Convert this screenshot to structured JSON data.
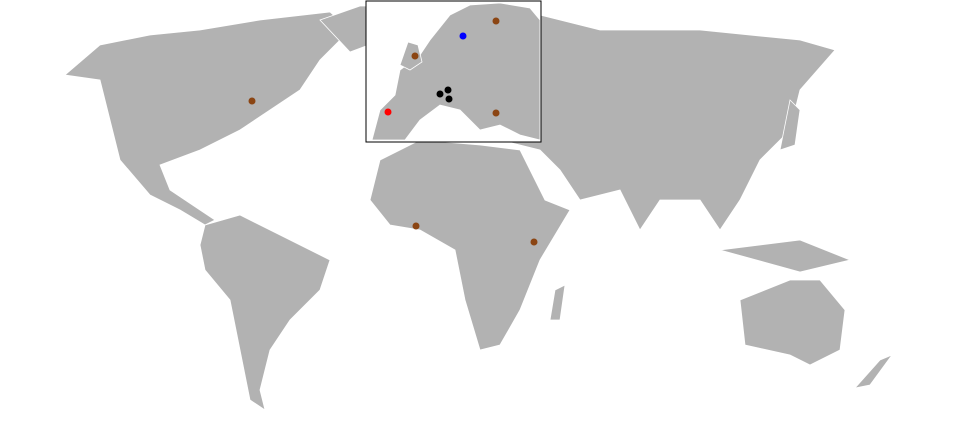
{
  "markers": [
    {
      "color": "#8b4513"
    },
    {
      "color": "#8b4513"
    },
    {
      "color": "#8b4513"
    },
    {
      "color": "#8b4513"
    },
    {
      "color": "#8b4513"
    },
    {
      "color": "#8b4513"
    },
    {
      "color": "#0000ff"
    },
    {
      "color": "#ff0000"
    },
    {
      "color": "#000000"
    },
    {
      "color": "#000000"
    },
    {
      "color": "#000000"
    }
  ]
}
